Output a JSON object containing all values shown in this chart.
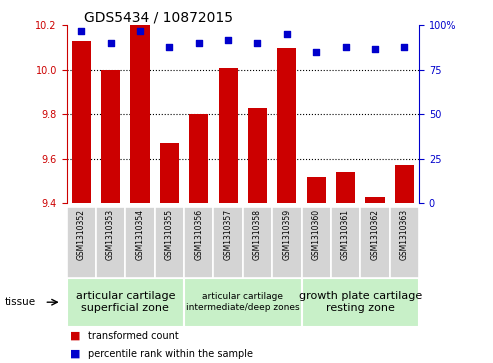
{
  "title": "GDS5434 / 10872015",
  "samples": [
    "GSM1310352",
    "GSM1310353",
    "GSM1310354",
    "GSM1310355",
    "GSM1310356",
    "GSM1310357",
    "GSM1310358",
    "GSM1310359",
    "GSM1310360",
    "GSM1310361",
    "GSM1310362",
    "GSM1310363"
  ],
  "red_values": [
    10.13,
    10.0,
    10.2,
    9.67,
    9.8,
    10.01,
    9.83,
    10.1,
    9.52,
    9.54,
    9.43,
    9.57
  ],
  "blue_values": [
    97,
    90,
    97,
    88,
    90,
    92,
    90,
    95,
    85,
    88,
    87,
    88
  ],
  "ylim_left": [
    9.4,
    10.2
  ],
  "ylim_right": [
    0,
    100
  ],
  "yticks_left": [
    9.4,
    9.6,
    9.8,
    10.0,
    10.2
  ],
  "yticks_right": [
    0,
    25,
    50,
    75,
    100
  ],
  "groups": [
    {
      "label": "articular cartilage\nsuperficial zone",
      "start": 0,
      "end": 4,
      "fontsize": 8
    },
    {
      "label": "articular cartilage\nintermediate/deep zones",
      "start": 4,
      "end": 8,
      "fontsize": 6.5
    },
    {
      "label": "growth plate cartilage\nresting zone",
      "start": 8,
      "end": 12,
      "fontsize": 8
    }
  ],
  "group_color": "#c8f0c8",
  "tissue_label": "tissue",
  "legend_red": "transformed count",
  "legend_blue": "percentile rank within the sample",
  "bar_color": "#cc0000",
  "dot_color": "#0000cc",
  "title_fontsize": 10,
  "tick_fontsize": 7,
  "label_fontsize": 5.5,
  "axis_color_left": "#cc0000",
  "axis_color_right": "#0000cc",
  "sample_box_color": "#d4d4d4"
}
